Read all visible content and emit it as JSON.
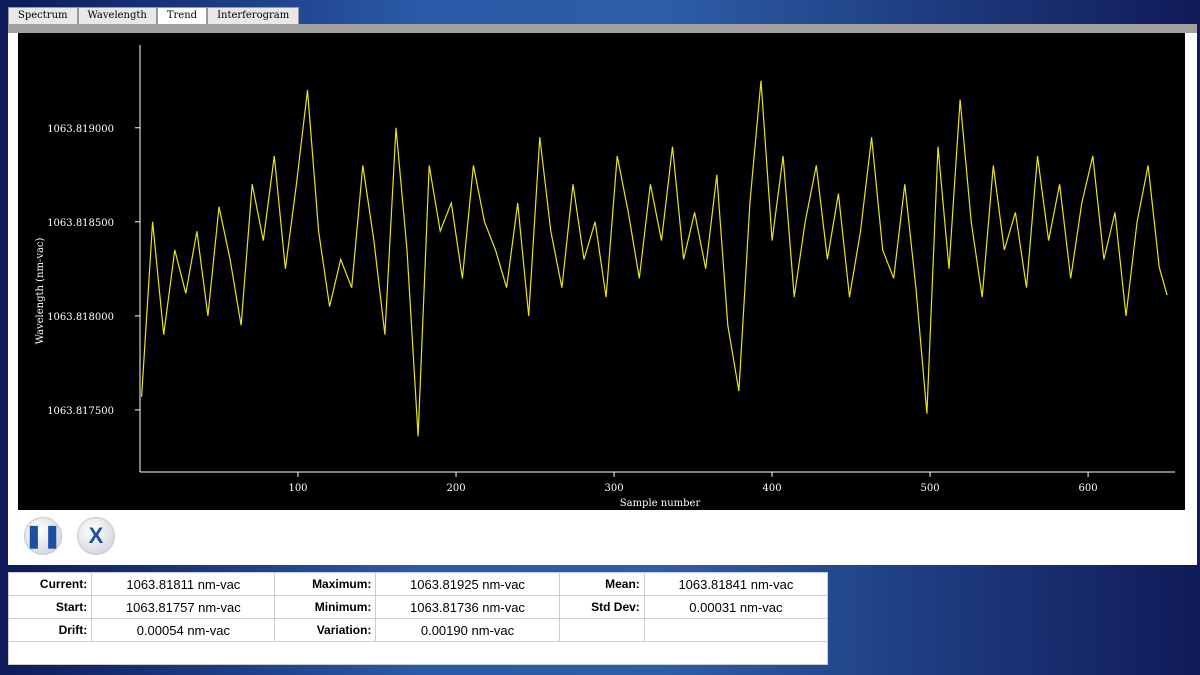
{
  "tabs": [
    "Spectrum",
    "Wavelength",
    "Trend",
    "Interferogram"
  ],
  "chart_data": {
    "type": "line",
    "xlabel": "Sample number",
    "ylabel": "Wavelength (nm-vac)",
    "x": [
      1,
      8,
      15,
      22,
      29,
      36,
      43,
      50,
      57,
      64,
      71,
      78,
      85,
      92,
      99,
      106,
      113,
      120,
      127,
      134,
      141,
      148,
      155,
      162,
      169,
      176,
      183,
      190,
      197,
      204,
      211,
      218,
      225,
      232,
      239,
      246,
      253,
      260,
      267,
      274,
      281,
      288,
      295,
      302,
      309,
      316,
      323,
      330,
      337,
      344,
      351,
      358,
      365,
      372,
      379,
      386,
      393,
      400,
      407,
      414,
      421,
      428,
      435,
      442,
      449,
      456,
      463,
      470,
      477,
      484,
      491,
      498,
      505,
      512,
      519,
      526,
      533,
      540,
      547,
      554,
      561,
      568,
      575,
      582,
      589,
      596,
      603,
      610,
      617,
      624,
      631,
      638,
      645,
      650
    ],
    "values": [
      1063.81757,
      1063.8185,
      1063.8179,
      1063.81835,
      1063.81812,
      1063.81845,
      1063.818,
      1063.81858,
      1063.8183,
      1063.81795,
      1063.8187,
      1063.8184,
      1063.81885,
      1063.81825,
      1063.8187,
      1063.8192,
      1063.81845,
      1063.81805,
      1063.8183,
      1063.81815,
      1063.8188,
      1063.8184,
      1063.8179,
      1063.819,
      1063.81835,
      1063.81736,
      1063.8188,
      1063.81845,
      1063.8186,
      1063.8182,
      1063.8188,
      1063.8185,
      1063.81835,
      1063.81815,
      1063.8186,
      1063.818,
      1063.81895,
      1063.81845,
      1063.81815,
      1063.8187,
      1063.8183,
      1063.8185,
      1063.8181,
      1063.81885,
      1063.81855,
      1063.8182,
      1063.8187,
      1063.8184,
      1063.8189,
      1063.8183,
      1063.81855,
      1063.81825,
      1063.81875,
      1063.81795,
      1063.8176,
      1063.8186,
      1063.81925,
      1063.8184,
      1063.81885,
      1063.8181,
      1063.8185,
      1063.8188,
      1063.8183,
      1063.81865,
      1063.8181,
      1063.81845,
      1063.81895,
      1063.81835,
      1063.8182,
      1063.8187,
      1063.81815,
      1063.81748,
      1063.8189,
      1063.81825,
      1063.81915,
      1063.8185,
      1063.8181,
      1063.8188,
      1063.81835,
      1063.81855,
      1063.81815,
      1063.81885,
      1063.8184,
      1063.8187,
      1063.8182,
      1063.8186,
      1063.81885,
      1063.8183,
      1063.81855,
      1063.818,
      1063.8185,
      1063.8188,
      1063.81826,
      1063.81811
    ],
    "color": "#e8e41c",
    "xlim": [
      0,
      655
    ],
    "xticks": [
      100,
      200,
      300,
      400,
      500,
      600
    ],
    "ylim": [
      1063.81717,
      1063.81944
    ],
    "yticks": [
      {
        "value": 1063.8175,
        "label": "1063.817500"
      },
      {
        "value": 1063.818,
        "label": "1063.818000"
      },
      {
        "value": 1063.8185,
        "label": "1063.818500"
      },
      {
        "value": 1063.819,
        "label": "1063.819000"
      }
    ]
  },
  "stats": {
    "rows": [
      [
        "Current:",
        "1063.81811 nm-vac",
        "Maximum:",
        "1063.81925 nm-vac",
        "Mean:",
        "1063.81841 nm-vac"
      ],
      [
        "Start:",
        "1063.81757 nm-vac",
        "Minimum:",
        "1063.81736 nm-vac",
        "Std Dev:",
        "0.00031 nm-vac"
      ],
      [
        "Drift:",
        "0.00054 nm-vac",
        "Variation:",
        "0.00190 nm-vac"
      ]
    ]
  }
}
